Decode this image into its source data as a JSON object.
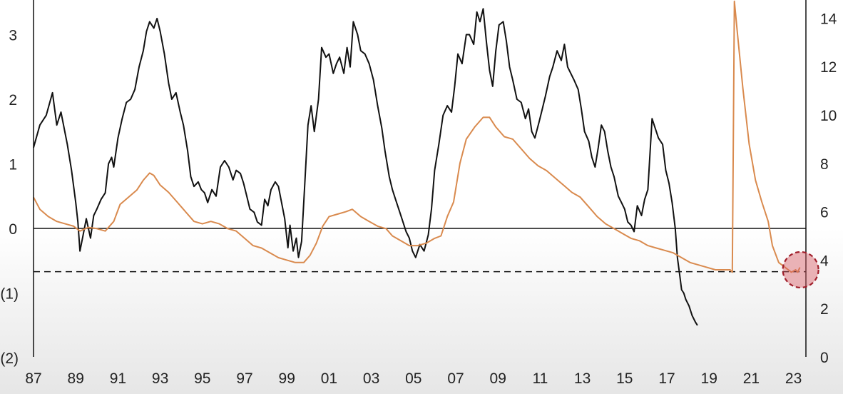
{
  "chart_data": {
    "type": "line",
    "title": "",
    "xlabel": "",
    "ylabel_left": "",
    "ylabel_right": "",
    "x_tick_labels": [
      "87",
      "89",
      "91",
      "93",
      "95",
      "97",
      "99",
      "01",
      "03",
      "05",
      "07",
      "09",
      "11",
      "13",
      "15",
      "17",
      "19",
      "21",
      "23"
    ],
    "x_tick_years": [
      1987,
      1989,
      1991,
      1993,
      1995,
      1997,
      1999,
      2001,
      2003,
      2005,
      2007,
      2009,
      2011,
      2013,
      2015,
      2017,
      2019,
      2021,
      2023
    ],
    "xlim": [
      1987,
      2023.3
    ],
    "y_left": {
      "lim": [
        -2,
        3.5
      ],
      "ticks": [
        -2,
        -1,
        0,
        1,
        2,
        3
      ],
      "tick_labels": [
        "(2)",
        "(1)",
        "0",
        "1",
        "2",
        "3"
      ]
    },
    "y_right": {
      "lim": [
        0,
        15
      ],
      "ticks": [
        0,
        2,
        4,
        6,
        8,
        10,
        12,
        14
      ],
      "tick_labels": [
        "0",
        "2",
        "4",
        "6",
        "8",
        "10",
        "12",
        "14"
      ]
    },
    "reference_lines": [
      {
        "axis": "left",
        "y": 0,
        "style": "solid"
      },
      {
        "axis": "left",
        "y": -0.67,
        "style": "dashed"
      }
    ],
    "highlight": {
      "axis": "right",
      "x": 2023.0,
      "y": 3.6
    },
    "grid": false,
    "legend": "none",
    "series": [
      {
        "axis": "left",
        "color": "#111111",
        "points": [
          [
            1987.0,
            1.25
          ],
          [
            1987.3,
            1.6
          ],
          [
            1987.6,
            1.75
          ],
          [
            1987.9,
            2.1
          ],
          [
            1988.1,
            1.6
          ],
          [
            1988.3,
            1.8
          ],
          [
            1988.6,
            1.3
          ],
          [
            1988.8,
            0.9
          ],
          [
            1989.0,
            0.4
          ],
          [
            1989.1,
            0.1
          ],
          [
            1989.2,
            -0.35
          ],
          [
            1989.35,
            -0.1
          ],
          [
            1989.5,
            0.15
          ],
          [
            1989.7,
            -0.15
          ],
          [
            1989.85,
            0.2
          ],
          [
            1990.0,
            0.3
          ],
          [
            1990.2,
            0.45
          ],
          [
            1990.4,
            0.55
          ],
          [
            1990.55,
            1.0
          ],
          [
            1990.7,
            1.1
          ],
          [
            1990.8,
            0.95
          ],
          [
            1991.0,
            1.4
          ],
          [
            1991.2,
            1.7
          ],
          [
            1991.4,
            1.95
          ],
          [
            1991.6,
            2.0
          ],
          [
            1991.8,
            2.15
          ],
          [
            1992.0,
            2.5
          ],
          [
            1992.2,
            2.75
          ],
          [
            1992.35,
            3.05
          ],
          [
            1992.5,
            3.2
          ],
          [
            1992.7,
            3.1
          ],
          [
            1992.85,
            3.25
          ],
          [
            1993.0,
            3.05
          ],
          [
            1993.2,
            2.7
          ],
          [
            1993.4,
            2.25
          ],
          [
            1993.55,
            2.0
          ],
          [
            1993.75,
            2.1
          ],
          [
            1993.95,
            1.8
          ],
          [
            1994.1,
            1.6
          ],
          [
            1994.3,
            1.2
          ],
          [
            1994.45,
            0.8
          ],
          [
            1994.6,
            0.65
          ],
          [
            1994.8,
            0.72
          ],
          [
            1994.95,
            0.6
          ],
          [
            1995.1,
            0.55
          ],
          [
            1995.25,
            0.4
          ],
          [
            1995.45,
            0.6
          ],
          [
            1995.65,
            0.5
          ],
          [
            1995.85,
            0.95
          ],
          [
            1996.05,
            1.05
          ],
          [
            1996.25,
            0.95
          ],
          [
            1996.45,
            0.75
          ],
          [
            1996.6,
            0.9
          ],
          [
            1996.8,
            0.85
          ],
          [
            1996.95,
            0.7
          ],
          [
            1997.1,
            0.5
          ],
          [
            1997.25,
            0.3
          ],
          [
            1997.45,
            0.25
          ],
          [
            1997.6,
            0.1
          ],
          [
            1997.8,
            0.05
          ],
          [
            1997.95,
            0.45
          ],
          [
            1998.1,
            0.35
          ],
          [
            1998.25,
            0.6
          ],
          [
            1998.45,
            0.72
          ],
          [
            1998.6,
            0.65
          ],
          [
            1998.75,
            0.4
          ],
          [
            1998.9,
            0.15
          ],
          [
            1999.05,
            -0.3
          ],
          [
            1999.15,
            0.05
          ],
          [
            1999.3,
            -0.35
          ],
          [
            1999.45,
            -0.15
          ],
          [
            1999.55,
            -0.45
          ],
          [
            1999.7,
            -0.2
          ],
          [
            1999.85,
            0.7
          ],
          [
            2000.0,
            1.6
          ],
          [
            2000.15,
            1.9
          ],
          [
            2000.3,
            1.5
          ],
          [
            2000.5,
            2.0
          ],
          [
            2000.65,
            2.8
          ],
          [
            2000.85,
            2.65
          ],
          [
            2001.0,
            2.7
          ],
          [
            2001.2,
            2.4
          ],
          [
            2001.35,
            2.55
          ],
          [
            2001.5,
            2.65
          ],
          [
            2001.7,
            2.4
          ],
          [
            2001.85,
            2.8
          ],
          [
            2002.0,
            2.5
          ],
          [
            2002.15,
            3.2
          ],
          [
            2002.35,
            3.0
          ],
          [
            2002.5,
            2.75
          ],
          [
            2002.7,
            2.7
          ],
          [
            2002.9,
            2.55
          ],
          [
            2003.1,
            2.3
          ],
          [
            2003.3,
            1.9
          ],
          [
            2003.5,
            1.55
          ],
          [
            2003.65,
            1.2
          ],
          [
            2003.85,
            0.8
          ],
          [
            2004.0,
            0.6
          ],
          [
            2004.15,
            0.45
          ],
          [
            2004.35,
            0.25
          ],
          [
            2004.5,
            0.1
          ],
          [
            2004.65,
            -0.05
          ],
          [
            2004.8,
            -0.15
          ],
          [
            2004.95,
            -0.35
          ],
          [
            2005.1,
            -0.45
          ],
          [
            2005.3,
            -0.25
          ],
          [
            2005.5,
            -0.35
          ],
          [
            2005.7,
            -0.1
          ],
          [
            2005.85,
            0.3
          ],
          [
            2006.0,
            0.9
          ],
          [
            2006.2,
            1.3
          ],
          [
            2006.4,
            1.75
          ],
          [
            2006.6,
            1.9
          ],
          [
            2006.8,
            1.8
          ],
          [
            2006.95,
            2.2
          ],
          [
            2007.1,
            2.7
          ],
          [
            2007.3,
            2.55
          ],
          [
            2007.5,
            3.0
          ],
          [
            2007.65,
            3.0
          ],
          [
            2007.85,
            2.85
          ],
          [
            2008.0,
            3.35
          ],
          [
            2008.15,
            3.2
          ],
          [
            2008.3,
            3.4
          ],
          [
            2008.45,
            2.9
          ],
          [
            2008.6,
            2.45
          ],
          [
            2008.75,
            2.2
          ],
          [
            2008.9,
            2.75
          ],
          [
            2009.05,
            3.15
          ],
          [
            2009.25,
            3.2
          ],
          [
            2009.4,
            2.9
          ],
          [
            2009.55,
            2.5
          ],
          [
            2009.7,
            2.3
          ],
          [
            2009.9,
            2.0
          ],
          [
            2010.1,
            1.95
          ],
          [
            2010.3,
            1.7
          ],
          [
            2010.45,
            1.85
          ],
          [
            2010.6,
            1.5
          ],
          [
            2010.75,
            1.4
          ],
          [
            2010.95,
            1.65
          ],
          [
            2011.1,
            1.85
          ],
          [
            2011.25,
            2.05
          ],
          [
            2011.45,
            2.35
          ],
          [
            2011.6,
            2.5
          ],
          [
            2011.8,
            2.75
          ],
          [
            2012.0,
            2.6
          ],
          [
            2012.15,
            2.85
          ],
          [
            2012.3,
            2.5
          ],
          [
            2012.45,
            2.4
          ],
          [
            2012.6,
            2.3
          ],
          [
            2012.8,
            2.15
          ],
          [
            2012.95,
            1.85
          ],
          [
            2013.1,
            1.5
          ],
          [
            2013.3,
            1.35
          ],
          [
            2013.45,
            1.1
          ],
          [
            2013.6,
            0.95
          ],
          [
            2013.75,
            1.25
          ],
          [
            2013.9,
            1.6
          ],
          [
            2014.05,
            1.5
          ],
          [
            2014.2,
            1.2
          ],
          [
            2014.35,
            0.95
          ],
          [
            2014.5,
            0.8
          ],
          [
            2014.7,
            0.5
          ],
          [
            2014.85,
            0.4
          ],
          [
            2015.0,
            0.3
          ],
          [
            2015.15,
            0.1
          ],
          [
            2015.3,
            0.05
          ],
          [
            2015.45,
            -0.05
          ],
          [
            2015.6,
            0.35
          ],
          [
            2015.8,
            0.2
          ],
          [
            2015.95,
            0.45
          ],
          [
            2016.1,
            0.6
          ],
          [
            2016.3,
            1.7
          ],
          [
            2016.45,
            1.55
          ],
          [
            2016.6,
            1.4
          ],
          [
            2016.8,
            1.3
          ],
          [
            2016.95,
            0.9
          ],
          [
            2017.1,
            0.7
          ],
          [
            2017.25,
            0.4
          ],
          [
            2017.4,
            0.0
          ],
          [
            2017.5,
            -0.45
          ],
          [
            2017.6,
            -0.7
          ],
          [
            2017.7,
            -0.95
          ],
          [
            2017.8,
            -1.0
          ],
          [
            2017.9,
            -1.1
          ],
          [
            2018.05,
            -1.2
          ],
          [
            2018.2,
            -1.35
          ],
          [
            2018.35,
            -1.45
          ],
          [
            2018.45,
            -1.5
          ]
        ]
      },
      {
        "axis": "right",
        "color": "#d98a4e",
        "points": [
          [
            1987.0,
            6.6
          ],
          [
            1987.3,
            6.1
          ],
          [
            1987.7,
            5.8
          ],
          [
            1988.1,
            5.6
          ],
          [
            1988.5,
            5.5
          ],
          [
            1988.9,
            5.4
          ],
          [
            1989.2,
            5.2
          ],
          [
            1989.6,
            5.35
          ],
          [
            1990.0,
            5.3
          ],
          [
            1990.4,
            5.2
          ],
          [
            1990.8,
            5.6
          ],
          [
            1991.1,
            6.3
          ],
          [
            1991.5,
            6.6
          ],
          [
            1991.9,
            6.9
          ],
          [
            1992.2,
            7.3
          ],
          [
            1992.5,
            7.6
          ],
          [
            1992.7,
            7.5
          ],
          [
            1993.0,
            7.1
          ],
          [
            1993.4,
            6.8
          ],
          [
            1993.8,
            6.4
          ],
          [
            1994.2,
            6.0
          ],
          [
            1994.6,
            5.6
          ],
          [
            1995.0,
            5.5
          ],
          [
            1995.4,
            5.6
          ],
          [
            1995.8,
            5.5
          ],
          [
            1996.2,
            5.3
          ],
          [
            1996.6,
            5.2
          ],
          [
            1997.0,
            4.9
          ],
          [
            1997.4,
            4.6
          ],
          [
            1997.8,
            4.5
          ],
          [
            1998.2,
            4.3
          ],
          [
            1998.6,
            4.1
          ],
          [
            1999.0,
            4.0
          ],
          [
            1999.4,
            3.9
          ],
          [
            1999.8,
            3.9
          ],
          [
            2000.1,
            4.2
          ],
          [
            2000.4,
            4.7
          ],
          [
            2000.7,
            5.4
          ],
          [
            2001.0,
            5.8
          ],
          [
            2001.4,
            5.9
          ],
          [
            2001.8,
            6.0
          ],
          [
            2002.1,
            6.1
          ],
          [
            2002.5,
            5.8
          ],
          [
            2002.9,
            5.6
          ],
          [
            2003.3,
            5.4
          ],
          [
            2003.7,
            5.3
          ],
          [
            2004.0,
            5.0
          ],
          [
            2004.4,
            4.8
          ],
          [
            2004.8,
            4.6
          ],
          [
            2005.2,
            4.6
          ],
          [
            2005.6,
            4.7
          ],
          [
            2006.0,
            4.9
          ],
          [
            2006.3,
            5.0
          ],
          [
            2006.6,
            5.8
          ],
          [
            2006.9,
            6.4
          ],
          [
            2007.2,
            8.0
          ],
          [
            2007.5,
            9.0
          ],
          [
            2007.9,
            9.5
          ],
          [
            2008.3,
            9.9
          ],
          [
            2008.6,
            9.9
          ],
          [
            2008.9,
            9.5
          ],
          [
            2009.3,
            9.1
          ],
          [
            2009.7,
            9.0
          ],
          [
            2010.1,
            8.6
          ],
          [
            2010.5,
            8.2
          ],
          [
            2010.9,
            7.9
          ],
          [
            2011.3,
            7.7
          ],
          [
            2011.7,
            7.4
          ],
          [
            2012.1,
            7.1
          ],
          [
            2012.5,
            6.8
          ],
          [
            2012.9,
            6.6
          ],
          [
            2013.3,
            6.2
          ],
          [
            2013.7,
            5.8
          ],
          [
            2014.1,
            5.5
          ],
          [
            2014.5,
            5.3
          ],
          [
            2014.9,
            5.1
          ],
          [
            2015.3,
            4.9
          ],
          [
            2015.7,
            4.8
          ],
          [
            2016.1,
            4.6
          ],
          [
            2016.5,
            4.5
          ],
          [
            2016.9,
            4.4
          ],
          [
            2017.3,
            4.3
          ],
          [
            2017.7,
            4.1
          ],
          [
            2018.1,
            3.9
          ],
          [
            2018.5,
            3.8
          ],
          [
            2018.9,
            3.7
          ],
          [
            2019.3,
            3.6
          ],
          [
            2019.7,
            3.6
          ],
          [
            2020.0,
            3.6
          ],
          [
            2020.1,
            3.5
          ],
          [
            2020.2,
            14.7
          ],
          [
            2020.35,
            13.3
          ],
          [
            2020.6,
            11.1
          ],
          [
            2020.9,
            8.8
          ],
          [
            2021.2,
            7.3
          ],
          [
            2021.5,
            6.4
          ],
          [
            2021.8,
            5.6
          ],
          [
            2022.0,
            4.6
          ],
          [
            2022.3,
            3.9
          ],
          [
            2022.6,
            3.7
          ],
          [
            2022.9,
            3.5
          ],
          [
            2023.1,
            3.6
          ],
          [
            2023.2,
            3.5
          ],
          [
            2023.3,
            3.7
          ]
        ]
      }
    ]
  }
}
